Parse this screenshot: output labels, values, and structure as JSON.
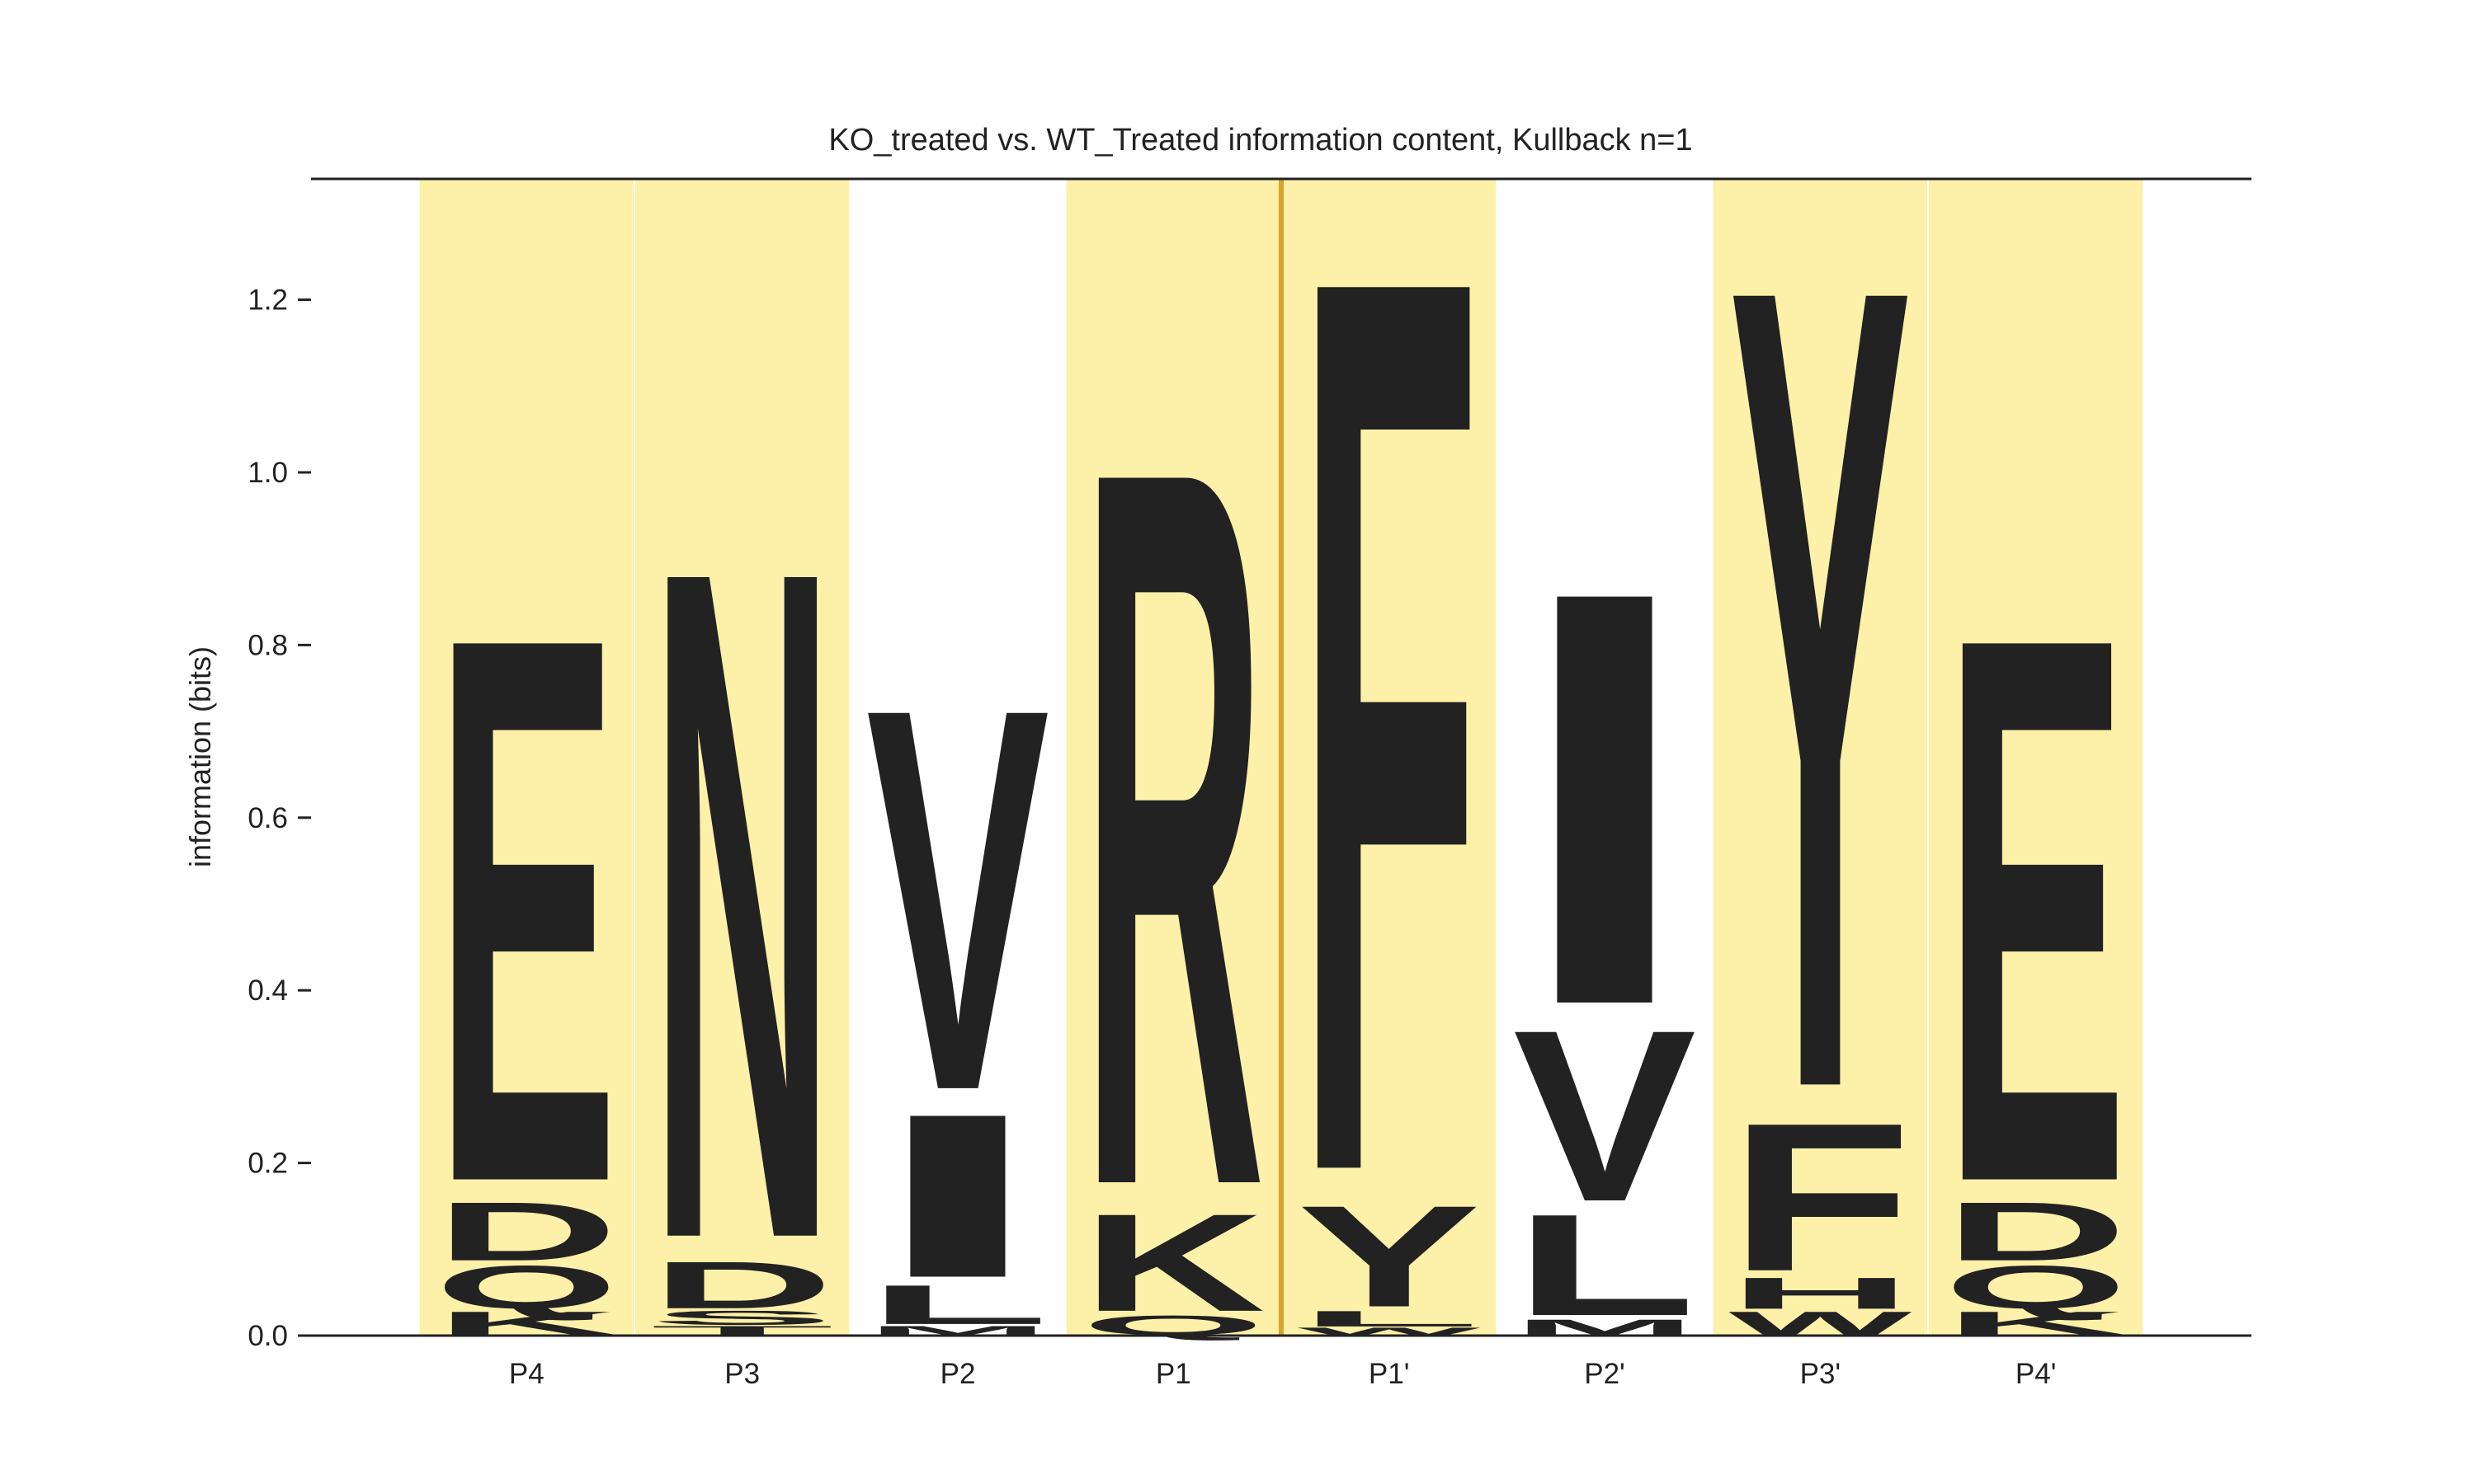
{
  "chart_data": {
    "type": "logo",
    "title": "KO_treated vs. WT_Treated information content, Kullback n=1",
    "ylabel": "information (bits)",
    "ylim": [
      0,
      1.34
    ],
    "yticks": [
      {
        "value": 0,
        "label": "0.0"
      },
      0.2,
      0.4,
      0.6,
      0.8,
      {
        "value": 1,
        "label": "1.0"
      },
      1.2
    ],
    "highlight_color": "#fdf0a8",
    "positions": [
      {
        "label": "P4",
        "highlight": true,
        "letters": [
          {
            "letter": "K",
            "color": "#bd2d20",
            "value": 0.03
          },
          {
            "letter": "Q",
            "color": "#41b947",
            "value": 0.055
          },
          {
            "letter": "D",
            "color": "#6a2a6b",
            "value": 0.075
          },
          {
            "letter": "E",
            "color": "#6a2a6b",
            "value": 0.7
          }
        ]
      },
      {
        "label": "P3",
        "highlight": true,
        "letters": [
          {
            "letter": "T",
            "color": "#235a9f",
            "value": 0.012
          },
          {
            "letter": "S",
            "color": "#41b947",
            "value": 0.018
          },
          {
            "letter": "D",
            "color": "#6a2a6b",
            "value": 0.06
          },
          {
            "letter": "N",
            "color": "#41b947",
            "value": 0.86
          }
        ]
      },
      {
        "label": "P2",
        "highlight": false,
        "letters": [
          {
            "letter": "M",
            "color": "#235a9f",
            "value": 0.012
          },
          {
            "letter": "L",
            "color": "#235a9f",
            "value": 0.05
          },
          {
            "letter": "I",
            "color": "#235a9f",
            "value": 0.21
          },
          {
            "letter": "V",
            "color": "#235a9f",
            "value": 0.49
          }
        ]
      },
      {
        "label": "P1",
        "highlight": true,
        "letters": [
          {
            "letter": "Q",
            "color": "#41b947",
            "value": 0.025
          },
          {
            "letter": "K",
            "color": "#bd2d20",
            "value": 0.125
          },
          {
            "letter": "R",
            "color": "#bd2d20",
            "value": 0.92
          }
        ]
      },
      {
        "label": "P1'",
        "highlight": true,
        "letters": [
          {
            "letter": "W",
            "color": "#235a9f",
            "value": 0.01
          },
          {
            "letter": "L",
            "color": "#235a9f",
            "value": 0.02
          },
          {
            "letter": "Y",
            "color": "#1a7a75",
            "value": 0.13
          },
          {
            "letter": "F",
            "color": "#235a9f",
            "value": 1.15
          }
        ]
      },
      {
        "label": "P2'",
        "highlight": false,
        "letters": [
          {
            "letter": "M",
            "color": "#235a9f",
            "value": 0.02
          },
          {
            "letter": "L",
            "color": "#235a9f",
            "value": 0.13
          },
          {
            "letter": "V",
            "color": "#235a9f",
            "value": 0.22
          },
          {
            "letter": "I",
            "color": "#235a9f",
            "value": 0.53
          }
        ]
      },
      {
        "label": "P3'",
        "highlight": true,
        "letters": [
          {
            "letter": "W",
            "color": "#235a9f",
            "value": 0.03
          },
          {
            "letter": "H",
            "color": "#1a7a75",
            "value": 0.04
          },
          {
            "letter": "F",
            "color": "#235a9f",
            "value": 0.19
          },
          {
            "letter": "Y",
            "color": "#1a7a75",
            "value": 1.03
          }
        ]
      },
      {
        "label": "P4'",
        "highlight": true,
        "letters": [
          {
            "letter": "K",
            "color": "#bd2d20",
            "value": 0.03
          },
          {
            "letter": "Q",
            "color": "#41b947",
            "value": 0.055
          },
          {
            "letter": "D",
            "color": "#6a2a6b",
            "value": 0.075
          },
          {
            "letter": "E",
            "color": "#6a2a6b",
            "value": 0.7
          }
        ]
      }
    ]
  }
}
